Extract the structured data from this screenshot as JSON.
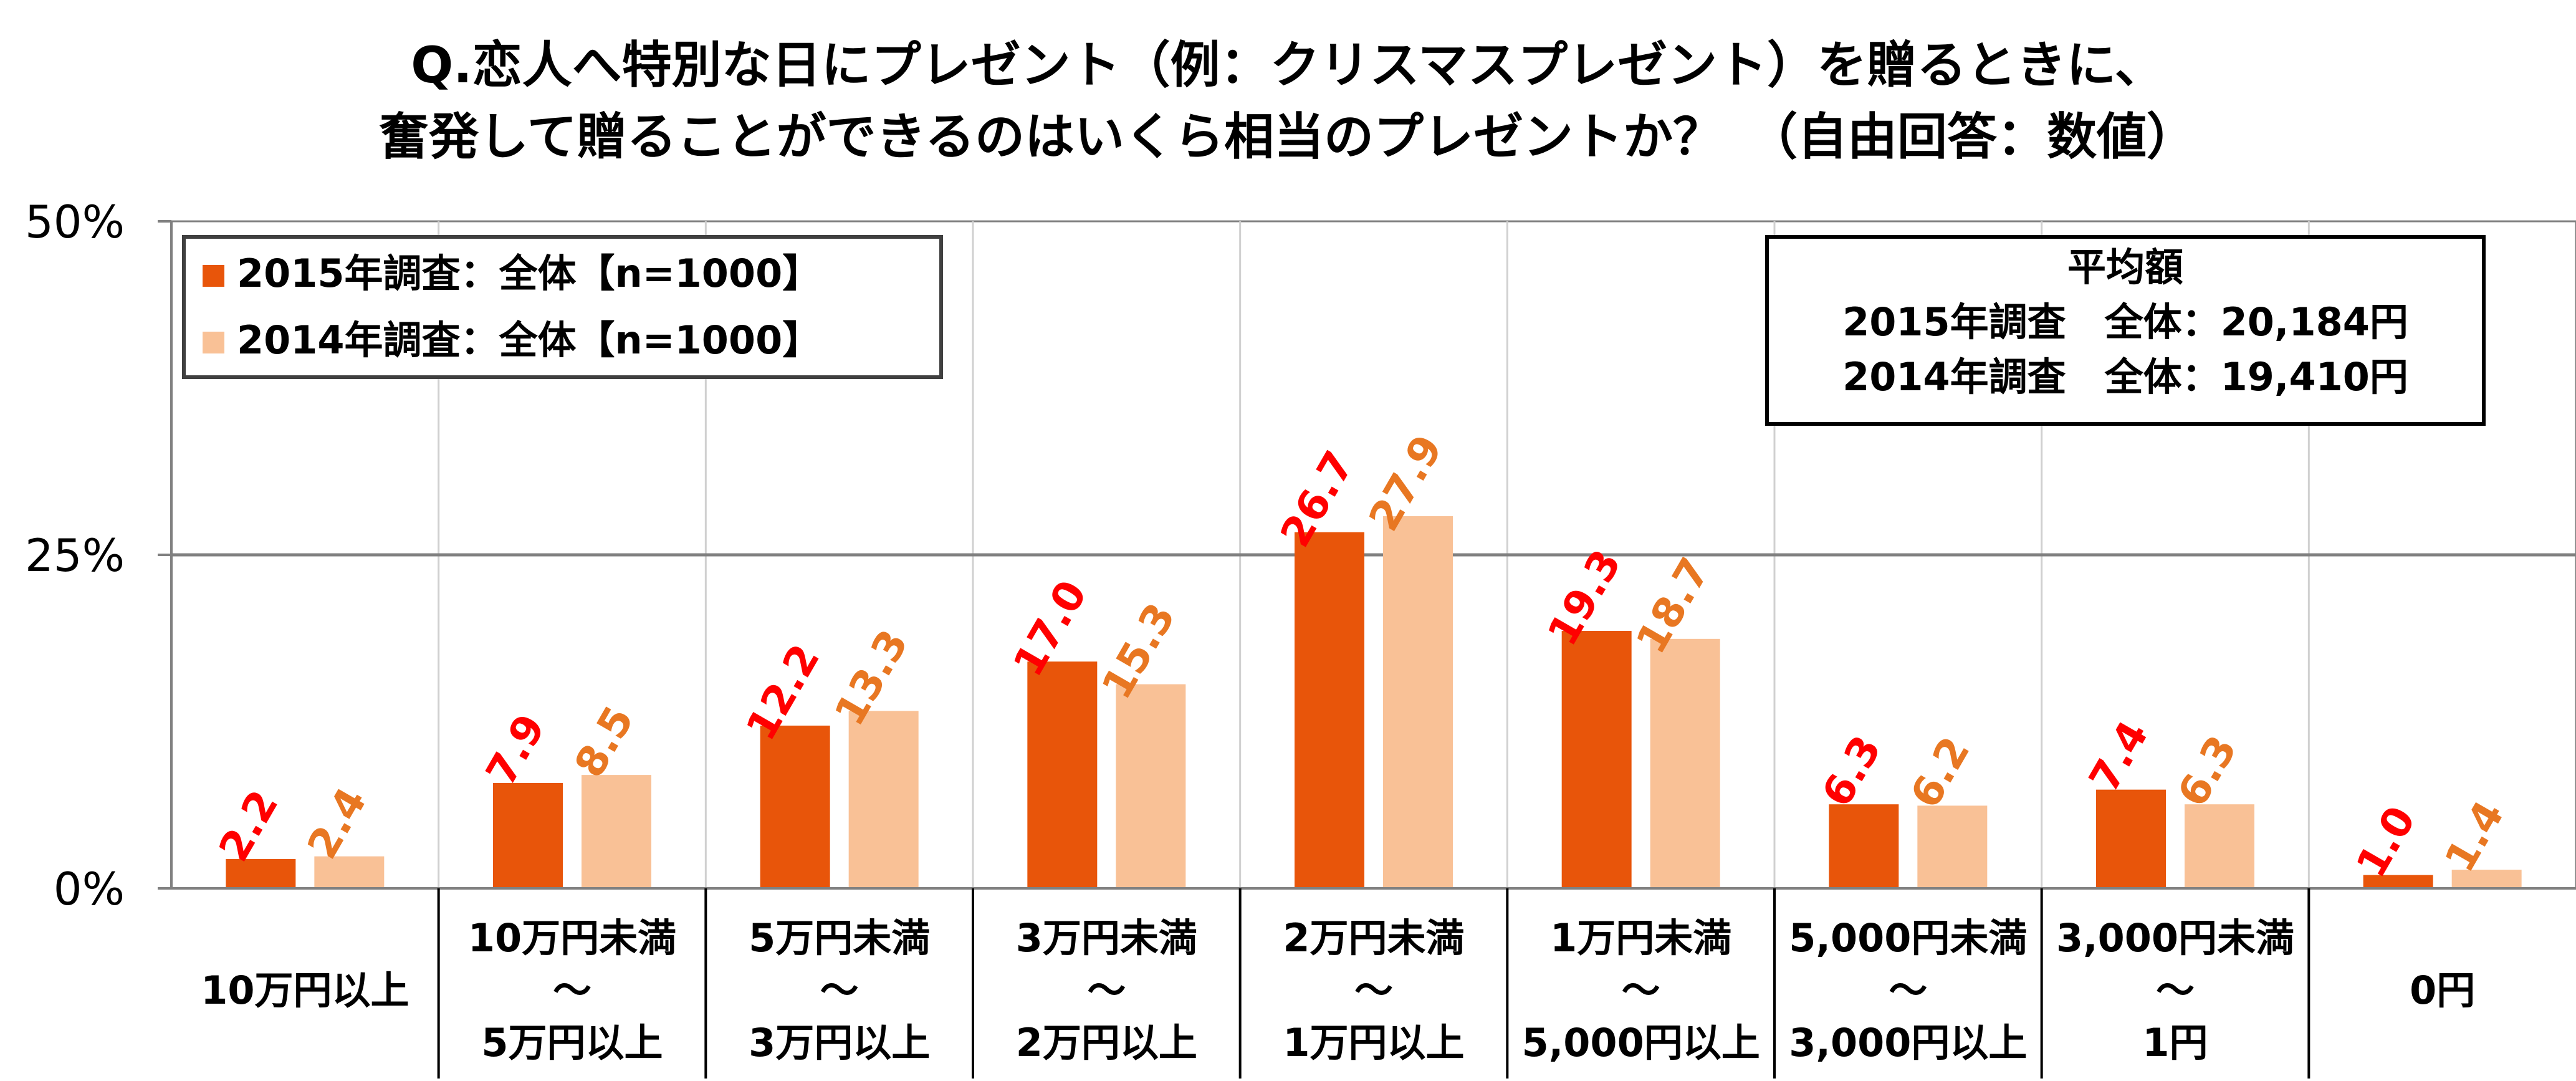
{
  "chart_data": {
    "type": "bar",
    "title": [
      "Q.恋人へ特別な日にプレゼント（例：クリスマスプレゼント）を贈るときに、",
      "奮発して贈ることができるのはいくら相当のプレゼントか？　（自由回答：数値）"
    ],
    "ylim": [
      0,
      50
    ],
    "yticks": [
      {
        "value": 0,
        "label": "0%"
      },
      {
        "value": 25,
        "label": "25%"
      },
      {
        "value": 50,
        "label": "50%"
      }
    ],
    "grid": true,
    "categories": [
      [
        "10万円以上"
      ],
      [
        "10万円未満",
        "～",
        "5万円以上"
      ],
      [
        "5万円未満",
        "～",
        "3万円以上"
      ],
      [
        "3万円未満",
        "～",
        "2万円以上"
      ],
      [
        "2万円未満",
        "～",
        "1万円以上"
      ],
      [
        "1万円未満",
        "～",
        "5,000円以上"
      ],
      [
        "5,000円未満",
        "～",
        "3,000円以上"
      ],
      [
        "3,000円未満",
        "～",
        "1円"
      ],
      [
        "0円"
      ]
    ],
    "series": [
      {
        "name": "2015年調査：全体【n=1000】",
        "color": "#E8550A",
        "label_color": "#FF0000",
        "values": [
          2.2,
          7.9,
          12.2,
          17.0,
          26.7,
          19.3,
          6.3,
          7.4,
          1.0
        ],
        "labels": [
          "2.2",
          "7.9",
          "12.2",
          "17.0",
          "26.7",
          "19.3",
          "6.3",
          "7.4",
          "1.0"
        ]
      },
      {
        "name": "2014年調査：全体【n=1000】",
        "color": "#F9C196",
        "label_color": "#E87722",
        "values": [
          2.4,
          8.5,
          13.3,
          15.3,
          27.9,
          18.7,
          6.2,
          6.3,
          1.4
        ],
        "labels": [
          "2.4",
          "8.5",
          "13.3",
          "15.3",
          "27.9",
          "18.7",
          "6.2",
          "6.3",
          "1.4"
        ]
      }
    ],
    "legend_position": "top-left",
    "annotation": {
      "lines": [
        "平均額",
        "2015年調査　全体：20,184円",
        "2014年調査　全体：19,410円"
      ],
      "position": "top-right"
    }
  }
}
